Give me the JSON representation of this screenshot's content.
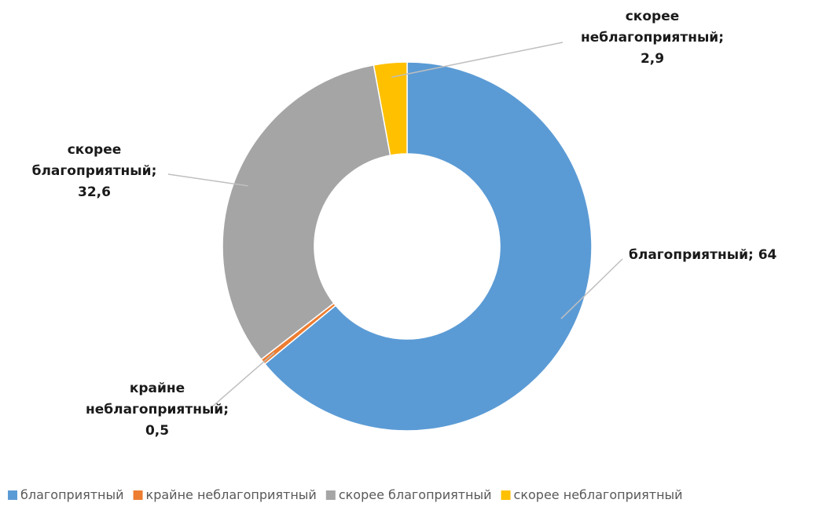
{
  "chart_data": {
    "type": "donut",
    "title": "",
    "series": [
      {
        "name": "благоприятный",
        "value": 64,
        "color": "#5b9bd5"
      },
      {
        "name": "крайне неблагоприятный",
        "value": 0.5,
        "color": "#ed7d31"
      },
      {
        "name": "скорее благоприятный",
        "value": 32.6,
        "color": "#a5a5a5"
      },
      {
        "name": "скорее неблагоприятный",
        "value": 2.9,
        "color": "#ffc000"
      }
    ],
    "data_labels": [
      [
        "благоприятный; 64"
      ],
      [
        "крайне",
        "неблагоприятный;",
        "0,5"
      ],
      [
        "скорее",
        "благоприятный;",
        "32,6"
      ],
      [
        "скорее",
        "неблагоприятный;",
        "2,9"
      ]
    ],
    "legend_position": "bottom"
  }
}
